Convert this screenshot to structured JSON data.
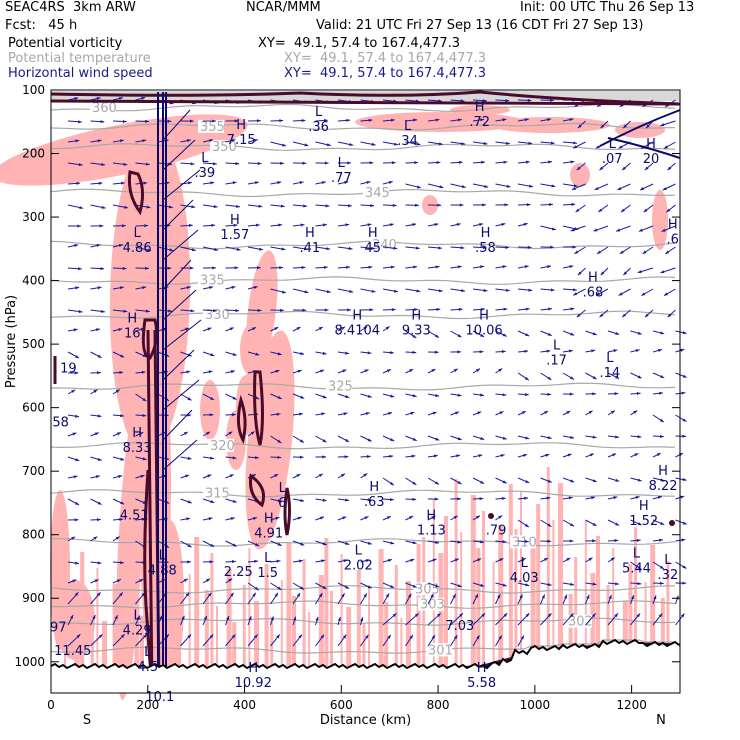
{
  "header": {
    "model": "SEAC4RS  3km ARW",
    "org": "NCAR/MMM",
    "init": "Init: 00 UTC Thu 26 Sep 13",
    "fcst": "Fcst:   45 h",
    "valid": "Valid: 21 UTC Fri 27 Sep 13 (16 CDT Fri 27 Sep 13)"
  },
  "fields": [
    {
      "name": "Potential vorticity",
      "xy": "XY=  49.1, 57.4 to 167.4,477.3",
      "color": "#000000"
    },
    {
      "name": "Potential temperature",
      "xy": "XY=  49.1, 57.4 to 167.4,477.3",
      "color": "#a8a8a8"
    },
    {
      "name": "Horizontal wind speed",
      "xy": "XY=  49.1, 57.4 to 167.4,477.3",
      "color": "#1a1a8c"
    }
  ],
  "colors": {
    "pv_positive_fill": "#ffb3b3",
    "pv_contour": "#4a0a2a",
    "theta_contour": "#a8a8a8",
    "wind_contour": "#0a0a6e",
    "wind_vector": "#1a1aa0",
    "terrain": "#000000"
  },
  "chart_data": {
    "type": "vertical cross-section",
    "xlabel": "Distance (km)",
    "ylabel": "Pressure (hPa)",
    "xlim": [
      0,
      1300
    ],
    "ylim": [
      1000,
      100
    ],
    "x_ticks": [
      0,
      200,
      400,
      600,
      800,
      1000,
      1200
    ],
    "y_ticks": [
      100,
      200,
      300,
      400,
      500,
      600,
      700,
      800,
      900,
      1000
    ],
    "x_end_labels": {
      "left": "S",
      "right": "N"
    },
    "theta_contours": [
      {
        "label": "360",
        "p": 128
      },
      {
        "label": "355",
        "p": 158
      },
      {
        "label": "350",
        "p": 190
      },
      {
        "label": "345",
        "p": 262
      },
      {
        "label": "340",
        "p": 344
      },
      {
        "label": "335",
        "p": 400
      },
      {
        "label": "330",
        "p": 454
      },
      {
        "label": "325",
        "p": 567
      },
      {
        "label": "320",
        "p": 660
      },
      {
        "label": "315",
        "p": 735
      },
      {
        "label": "310",
        "p": 812
      },
      {
        "label": "305",
        "p": 886
      },
      {
        "label": "303",
        "p": 910
      },
      {
        "label": "302",
        "p": 937
      },
      {
        "label": "301",
        "p": 982
      }
    ],
    "pv_extrema": [
      {
        "t": "H",
        "v": "7.15",
        "x": 393,
        "p": 180
      },
      {
        "t": "L",
        "v": ".36",
        "x": 553,
        "p": 160
      },
      {
        "t": "H",
        "v": ".72",
        "x": 886,
        "p": 152
      },
      {
        "t": "L",
        "v": ".34",
        "x": 737,
        "p": 182
      },
      {
        "t": "L",
        "v": ".39",
        "x": 318,
        "p": 232
      },
      {
        "t": "L",
        "v": ".77",
        "x": 600,
        "p": 240
      },
      {
        "t": "L",
        "v": ".07",
        "x": 1160,
        "p": 210
      },
      {
        "t": "H",
        "v": "20",
        "x": 1240,
        "p": 210
      },
      {
        "t": "L",
        "v": "4.86",
        "x": 178,
        "p": 350
      },
      {
        "t": "H",
        "v": "1.57",
        "x": 380,
        "p": 330
      },
      {
        "t": "H",
        "v": ".41",
        "x": 535,
        "p": 350
      },
      {
        "t": "H",
        "v": "45",
        "x": 665,
        "p": 350
      },
      {
        "t": "H",
        "v": ".58",
        "x": 898,
        "p": 350
      },
      {
        "t": "H",
        "v": ".6",
        "x": 1285,
        "p": 337
      },
      {
        "t": "H",
        "v": ".68",
        "x": 1120,
        "p": 420
      },
      {
        "t": "H",
        "v": "16",
        "x": 168,
        "p": 485
      },
      {
        "t": "H",
        "v": "8.4104",
        "x": 633,
        "p": 480
      },
      {
        "t": "H",
        "v": "9.33",
        "x": 755,
        "p": 480
      },
      {
        "t": "H",
        "v": "10.06",
        "x": 895,
        "p": 480
      },
      {
        "t": "L",
        "v": ".17",
        "x": 1045,
        "p": 527
      },
      {
        "t": "L",
        "v": ".14",
        "x": 1155,
        "p": 547
      },
      {
        "t": "",
        "v": "19",
        "x": 36,
        "p": 540
      },
      {
        "t": "",
        "v": "58",
        "x": 20,
        "p": 625
      },
      {
        "t": "H",
        "v": "8.33",
        "x": 178,
        "p": 665
      },
      {
        "t": "H",
        "v": ".63",
        "x": 668,
        "p": 750
      },
      {
        "t": "H",
        "v": "8.22",
        "x": 1265,
        "p": 725
      },
      {
        "t": "L",
        "v": "6",
        "x": 478,
        "p": 752
      },
      {
        "t": "4.51",
        "v": "",
        "x": 172,
        "p": 795
      },
      {
        "t": "H",
        "v": "1.13",
        "x": 786,
        "p": 795
      },
      {
        "t": "",
        "v": ".79",
        "x": 920,
        "p": 795
      },
      {
        "t": "H",
        "v": "1.52",
        "x": 1225,
        "p": 780
      },
      {
        "t": "H",
        "v": "4.91",
        "x": 450,
        "p": 800
      },
      {
        "t": "L",
        "v": "4.88",
        "x": 230,
        "p": 858
      },
      {
        "t": "",
        "v": "2.25",
        "x": 387,
        "p": 860
      },
      {
        "t": "L",
        "v": "1.5",
        "x": 448,
        "p": 862
      },
      {
        "t": "L",
        "v": "2.02",
        "x": 635,
        "p": 850
      },
      {
        "t": "L",
        "v": "4.03",
        "x": 978,
        "p": 870
      },
      {
        "t": "L",
        "v": "5.44",
        "x": 1210,
        "p": 855
      },
      {
        "t": "L",
        "v": ".32",
        "x": 1275,
        "p": 865
      },
      {
        "t": "L",
        "v": "4.29",
        "x": 178,
        "p": 952
      },
      {
        "t": "",
        "v": "7.03",
        "x": 845,
        "p": 945
      },
      {
        "t": "",
        "v": "97",
        "x": 15,
        "p": 948
      },
      {
        "t": "",
        "v": "11.45",
        "x": 45,
        "p": 985
      },
      {
        "t": "L",
        "v": "4.5",
        "x": 200,
        "p": 1010
      },
      {
        "t": "H",
        "v": "10.92",
        "x": 418,
        "p": 1035
      },
      {
        "t": "H",
        "v": "5.58",
        "x": 890,
        "p": 1035
      },
      {
        "t": "",
        "v": "10.1",
        "x": 225,
        "p": 1057
      }
    ]
  }
}
